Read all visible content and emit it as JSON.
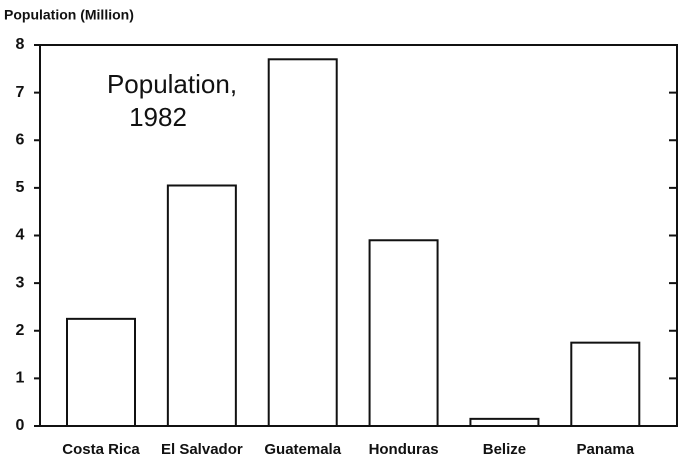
{
  "chart_data": {
    "type": "bar",
    "y_label": "Population (Million)",
    "annotation": [
      "Population,",
      "1982"
    ],
    "categories": [
      "Costa Rica",
      "El Salvador",
      "Guatemala",
      "Honduras",
      "Belize",
      "Panama"
    ],
    "values": [
      2.25,
      5.05,
      7.7,
      3.9,
      0.15,
      1.75
    ],
    "color": "#ffffff",
    "ylim": [
      0,
      8
    ],
    "yticks": [
      0,
      1,
      2,
      3,
      4,
      5,
      6,
      7,
      8
    ]
  }
}
